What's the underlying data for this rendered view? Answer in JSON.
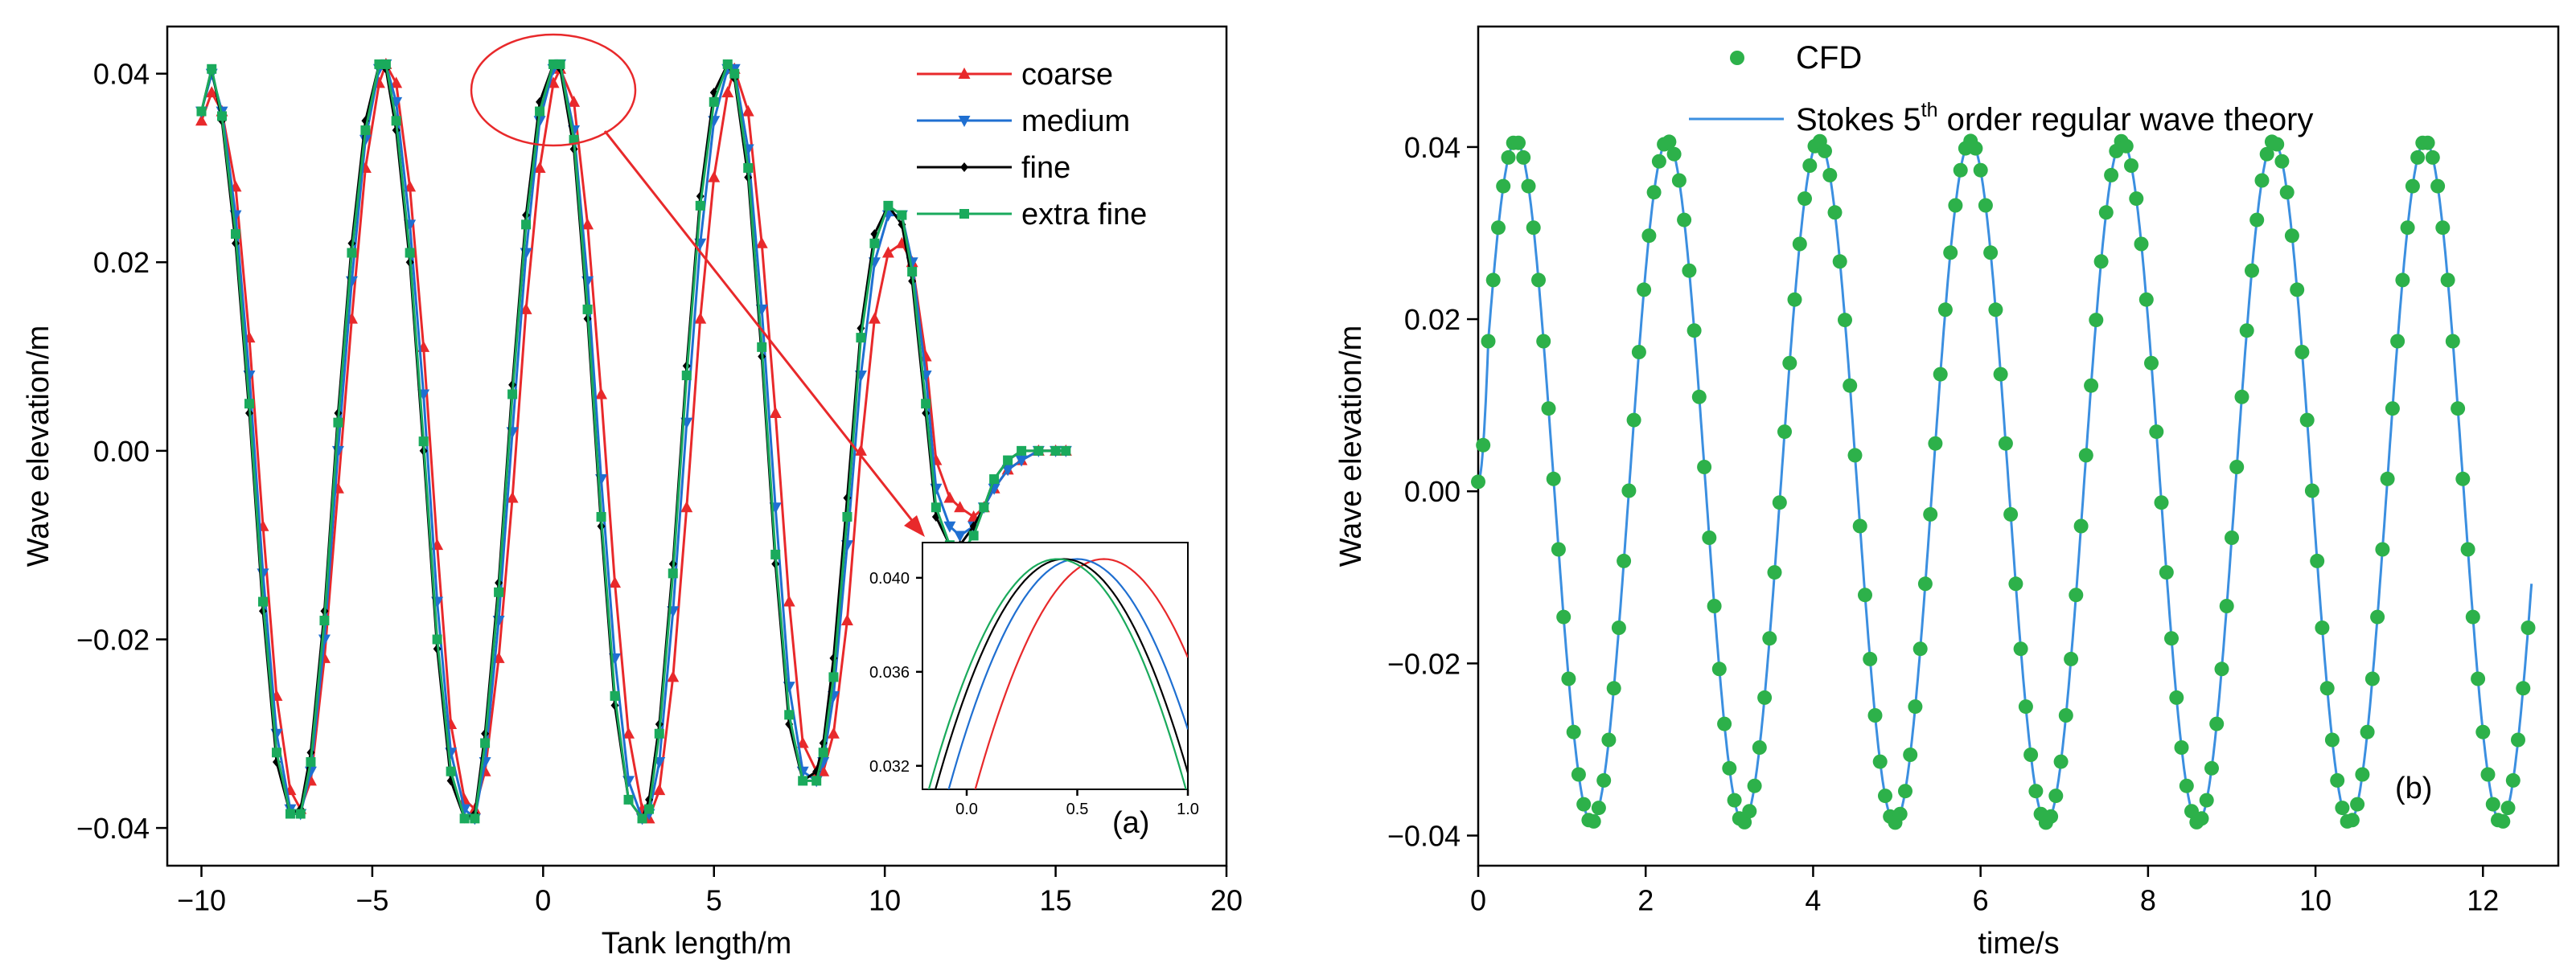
{
  "colors": {
    "coarse": "#e8292b",
    "medium": "#1f6fd1",
    "fine": "#000000",
    "extra_fine": "#1aaa5c",
    "cfd_marker": "#2db14a",
    "theory_line": "#3b8fe0",
    "annotation": "#e8292b"
  },
  "chart_data": [
    {
      "id": "a",
      "type": "line",
      "panel_label": "(a)",
      "title": "",
      "xlabel": "Tank length/m",
      "ylabel": "Wave elevation/m",
      "xlim": [
        -11,
        20
      ],
      "ylim": [
        -0.044,
        0.045
      ],
      "xticks": [
        -10,
        -5,
        0,
        5,
        10,
        15,
        20
      ],
      "xtick_labels": [
        "−10",
        "−5",
        "0",
        "5",
        "10",
        "15",
        "20"
      ],
      "yticks": [
        -0.04,
        -0.02,
        0.0,
        0.02,
        0.04
      ],
      "ytick_labels": [
        "−0.04",
        "−0.02",
        "0.00",
        "0.02",
        "0.04"
      ],
      "legend_position": "top-right",
      "series": [
        {
          "name": "coarse",
          "marker": "triangle-up",
          "x": [
            -10.0,
            -9.7,
            -9.4,
            -9.0,
            -8.6,
            -8.2,
            -7.8,
            -7.4,
            -7.1,
            -6.8,
            -6.4,
            -6.0,
            -5.6,
            -5.2,
            -4.8,
            -4.6,
            -4.3,
            -3.9,
            -3.5,
            -3.1,
            -2.7,
            -2.3,
            -2.0,
            -1.7,
            -1.3,
            -0.9,
            -0.5,
            -0.1,
            0.3,
            0.5,
            0.9,
            1.3,
            1.7,
            2.1,
            2.5,
            2.9,
            3.1,
            3.4,
            3.8,
            4.2,
            4.6,
            5.0,
            5.4,
            5.6,
            6.0,
            6.4,
            6.8,
            7.2,
            7.6,
            8.0,
            8.2,
            8.5,
            8.9,
            9.3,
            9.7,
            10.1,
            10.5,
            10.8,
            11.2,
            11.5,
            11.9,
            12.2,
            12.6,
            12.9,
            13.2,
            13.6,
            14.0,
            14.5,
            15.0,
            15.3
          ],
          "y": [
            0.035,
            0.038,
            0.036,
            0.028,
            0.012,
            -0.008,
            -0.026,
            -0.036,
            -0.038,
            -0.035,
            -0.022,
            -0.004,
            0.014,
            0.03,
            0.039,
            0.041,
            0.039,
            0.028,
            0.011,
            -0.01,
            -0.029,
            -0.037,
            -0.038,
            -0.034,
            -0.022,
            -0.005,
            0.015,
            0.03,
            0.039,
            0.0405,
            0.037,
            0.024,
            0.006,
            -0.014,
            -0.03,
            -0.038,
            -0.039,
            -0.036,
            -0.024,
            -0.006,
            0.014,
            0.029,
            0.038,
            0.0405,
            0.036,
            0.022,
            0.004,
            -0.016,
            -0.031,
            -0.034,
            -0.034,
            -0.03,
            -0.018,
            0.0,
            0.014,
            0.021,
            0.022,
            0.02,
            0.01,
            -0.001,
            -0.005,
            -0.006,
            -0.007,
            -0.006,
            -0.004,
            -0.002,
            -0.001,
            0.0,
            0.0,
            0.0
          ]
        },
        {
          "name": "medium",
          "marker": "triangle-down",
          "x": [
            -10.0,
            -9.7,
            -9.4,
            -9.0,
            -8.6,
            -8.2,
            -7.8,
            -7.4,
            -7.1,
            -6.8,
            -6.4,
            -6.0,
            -5.6,
            -5.2,
            -4.8,
            -4.6,
            -4.3,
            -3.9,
            -3.5,
            -3.1,
            -2.7,
            -2.3,
            -2.0,
            -1.7,
            -1.3,
            -0.9,
            -0.5,
            -0.1,
            0.3,
            0.5,
            0.9,
            1.3,
            1.7,
            2.1,
            2.5,
            2.9,
            3.1,
            3.4,
            3.8,
            4.2,
            4.6,
            5.0,
            5.4,
            5.6,
            6.0,
            6.4,
            6.8,
            7.2,
            7.6,
            8.0,
            8.2,
            8.5,
            8.9,
            9.3,
            9.7,
            10.1,
            10.5,
            10.8,
            11.2,
            11.5,
            11.9,
            12.2,
            12.6,
            12.9,
            13.2,
            13.6,
            14.0,
            14.5,
            15.0,
            15.3
          ],
          "y": [
            0.036,
            0.04,
            0.036,
            0.025,
            0.008,
            -0.013,
            -0.03,
            -0.038,
            -0.0385,
            -0.034,
            -0.02,
            0.0,
            0.018,
            0.033,
            0.0405,
            0.041,
            0.037,
            0.024,
            0.006,
            -0.016,
            -0.032,
            -0.038,
            -0.039,
            -0.033,
            -0.018,
            0.002,
            0.021,
            0.035,
            0.0405,
            0.041,
            0.034,
            0.018,
            -0.003,
            -0.022,
            -0.035,
            -0.039,
            -0.0385,
            -0.033,
            -0.017,
            0.003,
            0.022,
            0.035,
            0.0405,
            0.0405,
            0.032,
            0.015,
            -0.006,
            -0.025,
            -0.034,
            -0.035,
            -0.033,
            -0.026,
            -0.01,
            0.008,
            0.02,
            0.025,
            0.025,
            0.02,
            0.008,
            -0.004,
            -0.008,
            -0.009,
            -0.008,
            -0.006,
            -0.004,
            -0.002,
            -0.001,
            0.0,
            0.0,
            0.0
          ]
        },
        {
          "name": "fine",
          "marker": "diamond",
          "x": [
            -10.0,
            -9.7,
            -9.4,
            -9.0,
            -8.6,
            -8.2,
            -7.8,
            -7.4,
            -7.1,
            -6.8,
            -6.4,
            -6.0,
            -5.6,
            -5.2,
            -4.8,
            -4.6,
            -4.3,
            -3.9,
            -3.5,
            -3.1,
            -2.7,
            -2.3,
            -2.0,
            -1.7,
            -1.3,
            -0.9,
            -0.5,
            -0.1,
            0.3,
            0.5,
            0.9,
            1.3,
            1.7,
            2.1,
            2.5,
            2.9,
            3.1,
            3.4,
            3.8,
            4.2,
            4.6,
            5.0,
            5.4,
            5.6,
            6.0,
            6.4,
            6.8,
            7.2,
            7.6,
            8.0,
            8.2,
            8.5,
            8.9,
            9.3,
            9.7,
            10.1,
            10.5,
            10.8,
            11.2,
            11.5,
            11.9,
            12.2,
            12.6,
            12.9,
            13.2,
            13.6,
            14.0,
            14.5,
            15.0,
            15.3
          ],
          "y": [
            0.036,
            0.0405,
            0.035,
            0.022,
            0.004,
            -0.017,
            -0.033,
            -0.0385,
            -0.038,
            -0.032,
            -0.017,
            0.004,
            0.022,
            0.035,
            0.041,
            0.0405,
            0.034,
            0.02,
            0.0,
            -0.021,
            -0.035,
            -0.039,
            -0.0385,
            -0.03,
            -0.014,
            0.007,
            0.025,
            0.037,
            0.041,
            0.0405,
            0.032,
            0.014,
            -0.008,
            -0.027,
            -0.037,
            -0.039,
            -0.037,
            -0.029,
            -0.012,
            0.009,
            0.027,
            0.038,
            0.041,
            0.0395,
            0.029,
            0.01,
            -0.012,
            -0.029,
            -0.035,
            -0.034,
            -0.031,
            -0.022,
            -0.005,
            0.013,
            0.023,
            0.026,
            0.024,
            0.018,
            0.004,
            -0.007,
            -0.01,
            -0.01,
            -0.008,
            -0.006,
            -0.003,
            -0.001,
            0.0,
            0.0,
            0.0,
            0.0
          ]
        },
        {
          "name": "extra fine",
          "marker": "square",
          "x": [
            -10.0,
            -9.7,
            -9.4,
            -9.0,
            -8.6,
            -8.2,
            -7.8,
            -7.4,
            -7.1,
            -6.8,
            -6.4,
            -6.0,
            -5.6,
            -5.2,
            -4.8,
            -4.6,
            -4.3,
            -3.9,
            -3.5,
            -3.1,
            -2.7,
            -2.3,
            -2.0,
            -1.7,
            -1.3,
            -0.9,
            -0.5,
            -0.1,
            0.3,
            0.5,
            0.9,
            1.3,
            1.7,
            2.1,
            2.5,
            2.9,
            3.1,
            3.4,
            3.8,
            4.2,
            4.6,
            5.0,
            5.4,
            5.6,
            6.0,
            6.4,
            6.8,
            7.2,
            7.6,
            8.0,
            8.2,
            8.5,
            8.9,
            9.3,
            9.7,
            10.1,
            10.5,
            10.8,
            11.2,
            11.5,
            11.9,
            12.2,
            12.6,
            12.9,
            13.2,
            13.6,
            14.0,
            14.5,
            15.0,
            15.3
          ],
          "y": [
            0.036,
            0.0405,
            0.0355,
            0.023,
            0.005,
            -0.016,
            -0.032,
            -0.0385,
            -0.0385,
            -0.033,
            -0.018,
            0.003,
            0.021,
            0.034,
            0.041,
            0.041,
            0.035,
            0.021,
            0.001,
            -0.02,
            -0.034,
            -0.039,
            -0.039,
            -0.031,
            -0.015,
            0.006,
            0.024,
            0.036,
            0.041,
            0.041,
            0.033,
            0.015,
            -0.007,
            -0.026,
            -0.037,
            -0.039,
            -0.038,
            -0.03,
            -0.013,
            0.008,
            0.026,
            0.037,
            0.041,
            0.04,
            0.03,
            0.011,
            -0.011,
            -0.028,
            -0.035,
            -0.035,
            -0.032,
            -0.024,
            -0.007,
            0.012,
            0.022,
            0.026,
            0.025,
            0.019,
            0.005,
            -0.006,
            -0.01,
            -0.011,
            -0.009,
            -0.006,
            -0.003,
            -0.001,
            0.0,
            0.0,
            0.0,
            0.0
          ]
        }
      ],
      "inset": {
        "xlim": [
          -0.2,
          1.0
        ],
        "ylim": [
          0.031,
          0.0415
        ],
        "xticks": [
          0.0,
          0.5,
          1.0
        ],
        "xtick_labels": [
          "0.0",
          "0.5",
          "1.0"
        ],
        "yticks": [
          0.032,
          0.036,
          0.04
        ],
        "ytick_labels": [
          "0.032",
          "0.036",
          "0.040"
        ],
        "peaks": [
          {
            "name": "coarse",
            "peak_x": 0.62
          },
          {
            "name": "medium",
            "peak_x": 0.5
          },
          {
            "name": "fine",
            "peak_x": 0.44
          },
          {
            "name": "extra fine",
            "peak_x": 0.41
          }
        ],
        "peak_y": 0.0408,
        "curvature": 0.029
      }
    },
    {
      "id": "b",
      "type": "line",
      "panel_label": "(b)",
      "title": "",
      "xlabel": "time/s",
      "ylabel": "Wave elevation/m",
      "xlim": [
        0,
        12.9
      ],
      "ylim": [
        -0.0435,
        0.054
      ],
      "xticks": [
        0,
        2,
        4,
        6,
        8,
        10,
        12
      ],
      "xtick_labels": [
        "0",
        "2",
        "4",
        "6",
        "8",
        "10",
        "12"
      ],
      "yticks": [
        -0.04,
        -0.02,
        0.0,
        0.02,
        0.04
      ],
      "ytick_labels": [
        "−0.04",
        "−0.02",
        "0.00",
        "0.02",
        "0.04"
      ],
      "legend_position": "top",
      "wave": {
        "amplitude": 0.0396,
        "mean": 0.0011,
        "period": 1.81,
        "first_crest_time": 0.45,
        "t_start": 0.0,
        "t_end": 12.58,
        "sample_interval": 0.06
      },
      "series": [
        {
          "name": "CFD",
          "marker": "circle"
        },
        {
          "name": "Stokes 5th order regular wave theory",
          "marker": "none"
        }
      ],
      "legend": {
        "cfd": "CFD",
        "theory_prefix": "Stokes 5",
        "theory_sup": "th",
        "theory_suffix": " order regular wave theory"
      }
    }
  ]
}
